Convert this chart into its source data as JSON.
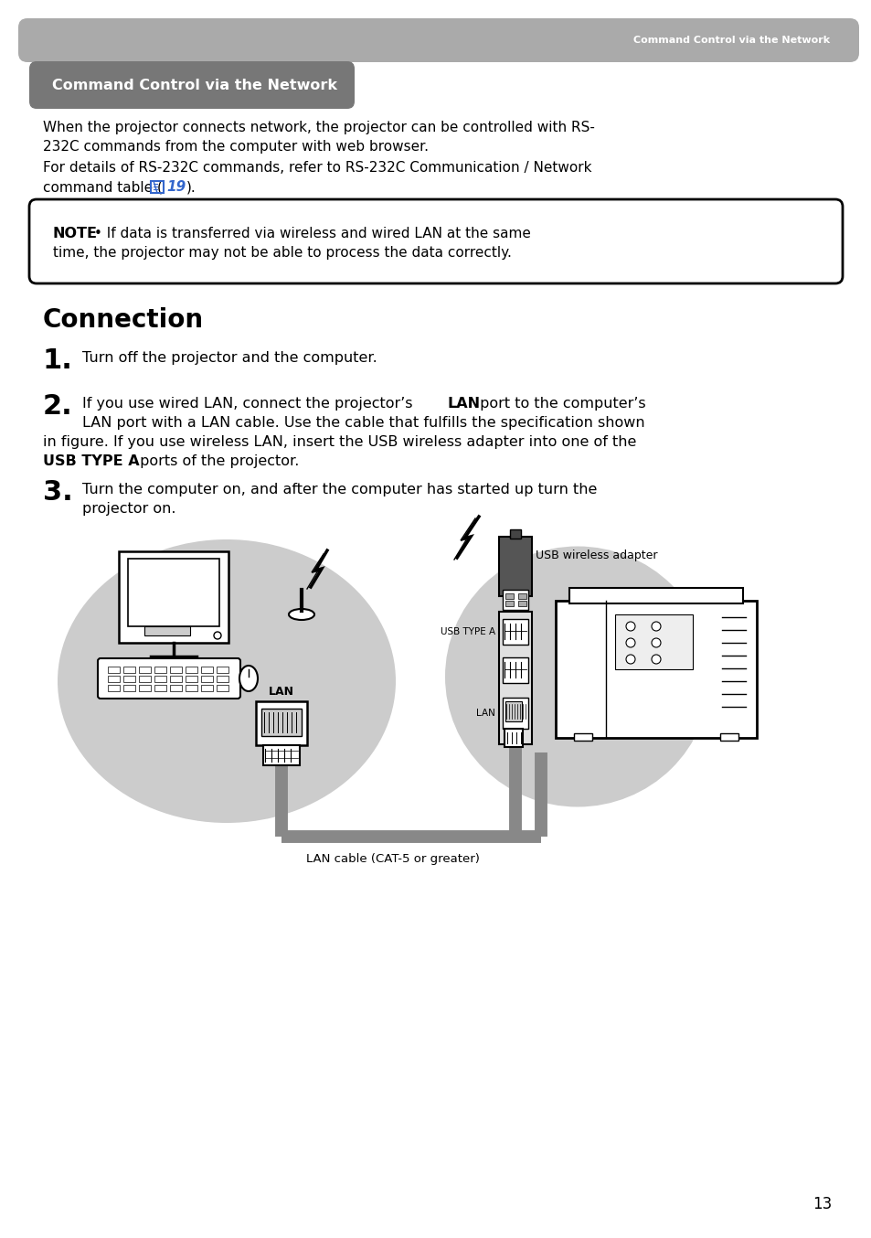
{
  "page_bg": "#ffffff",
  "header_bar_color": "#aaaaaa",
  "header_text": "Command Control via the Network",
  "header_text_color": "#ffffff",
  "section_title_bg": "#777777",
  "section_title_text": "Command Control via the Network",
  "section_title_text_color": "#ffffff",
  "body_text_color": "#000000",
  "note_bold": "NOTE",
  "note_rest": " • If data is transferred via wireless and wired LAN at the same\ntime, the projector may not be able to process the data correctly.",
  "connection_title": "Connection",
  "step1_text": "Turn off the projector and the computer.",
  "step2_line1_pre": "If you use wired LAN, connect the projector’s ",
  "step2_line1_bold": "LAN",
  "step2_line1_post": " port to the computer’s",
  "step2_line2": "LAN port with a LAN cable. Use the cable that fulfills the specification shown",
  "step2_line3": "in figure. If you use wireless LAN, insert the USB wireless adapter into one of the",
  "step2_line4_bold": "USB TYPE A",
  "step2_line4_post": " ports of the projector.",
  "step3_line1": "Turn the computer on, and after the computer has started up turn the",
  "step3_line2": "projector on.",
  "diagram_lan_cable_label": "LAN cable (CAT-5 or greater)",
  "diagram_lan_label_left": "LAN",
  "diagram_lan_label_right": "LAN",
  "diagram_usb_type_a_label": "USB TYPE A",
  "diagram_usb_wireless_label": "USB wireless adapter",
  "page_number": "13",
  "ellipse_color": "#cccccc",
  "cable_color": "#888888"
}
